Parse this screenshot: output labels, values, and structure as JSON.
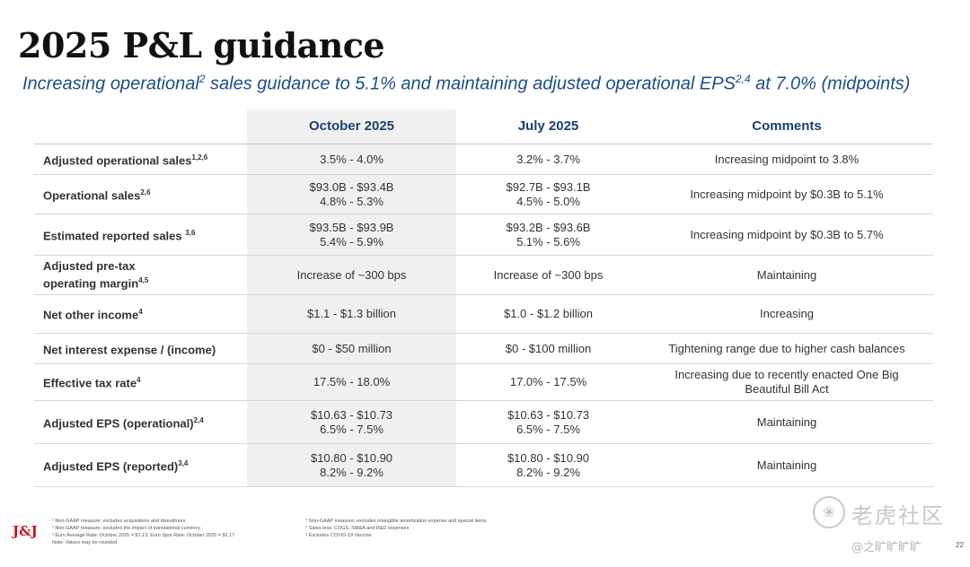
{
  "title": "2025 P&L guidance",
  "subtitle": {
    "part1": "Increasing operational",
    "sup1": "2",
    "part2": " sales guidance to 5.1% and maintaining adjusted operational EPS",
    "sup2": "2,4",
    "part3": " at 7.0% (midpoints)"
  },
  "table": {
    "headers": [
      "",
      "October 2025",
      "July 2025",
      "Comments"
    ],
    "rows": [
      {
        "label": "Adjusted operational sales",
        "label2": "",
        "sup": "1,2,6",
        "oct": [
          "3.5% - 4.0%"
        ],
        "jul": [
          "3.2% - 3.7%"
        ],
        "comment": "Increasing midpoint to 3.8%"
      },
      {
        "label": "Operational sales",
        "label2": "",
        "sup": "2,6",
        "oct": [
          "$93.0B - $93.4B",
          "4.8% - 5.3%"
        ],
        "jul": [
          "$92.7B - $93.1B",
          "4.5% - 5.0%"
        ],
        "comment": "Increasing midpoint by $0.3B to 5.1%"
      },
      {
        "label": "Estimated reported sales ",
        "label2": "",
        "sup": "3,6",
        "oct": [
          "$93.5B - $93.9B",
          "5.4% - 5.9%"
        ],
        "jul": [
          "$93.2B - $93.6B",
          "5.1% - 5.6%"
        ],
        "comment": "Increasing midpoint by $0.3B to 5.7%"
      },
      {
        "label": "Adjusted pre-tax",
        "label2": "operating margin",
        "sup": "4,5",
        "oct": [
          "Increase of ~300 bps"
        ],
        "jul": [
          "Increase of ~300 bps"
        ],
        "comment": "Maintaining"
      },
      {
        "label": "Net other income",
        "label2": "",
        "sup": "4",
        "oct": [
          "$1.1 - $1.3 billion"
        ],
        "jul": [
          "$1.0 - $1.2 billion"
        ],
        "comment": "Increasing"
      },
      {
        "label": "Net interest expense / (income)",
        "label2": "",
        "sup": "",
        "oct": [
          "$0 - $50 million"
        ],
        "jul": [
          "$0 - $100 million"
        ],
        "comment": "Tightening range due to higher cash balances"
      },
      {
        "label": "Effective tax rate",
        "label2": "",
        "sup": "4",
        "oct": [
          "17.5% - 18.0%"
        ],
        "jul": [
          "17.0% - 17.5%"
        ],
        "comment": "Increasing due to recently enacted One Big Beautiful Bill Act"
      },
      {
        "label": "Adjusted EPS (operational)",
        "label2": "",
        "sup": "2,4",
        "oct": [
          "$10.63 - $10.73",
          "6.5% - 7.5%"
        ],
        "jul": [
          "$10.63 - $10.73",
          "6.5% - 7.5%"
        ],
        "comment": "Maintaining"
      },
      {
        "label": "Adjusted EPS (reported)",
        "label2": "",
        "sup": "3,4",
        "oct": [
          "$10.80 - $10.90",
          "8.2% - 9.2%"
        ],
        "jul": [
          "$10.80 - $10.90",
          "8.2% - 9.2%"
        ],
        "comment": "Maintaining"
      }
    ]
  },
  "footnotes": {
    "left": [
      "¹ Non-GAAP measure; excludes acquisitions and divestitures",
      "² Non-GAAP measure; excludes the impact of translational currency",
      "³ Euro Average Rate: October 2025 = $1.13; Euro Spot Rate: October 2025 = $1.17",
      "Note: Values may be rounded"
    ],
    "right": [
      "⁴ Non-GAAP measure; excludes intangible amortization expense and special items",
      "⁵ Sales less: COGS, SM&A and R&D expenses",
      "⁶ Excludes COVID-19 Vaccine"
    ]
  },
  "logo": "J&J",
  "watermark": {
    "icon": "tiger-logo-icon",
    "text": "老虎社区",
    "user": "@之旷旷旷旷"
  },
  "page_number": "22",
  "colors": {
    "title": "#111111",
    "subtitle": "#1b4f8a",
    "header": "#1b3f73",
    "shade": "#f0f0f0",
    "logo": "#d1121d"
  }
}
